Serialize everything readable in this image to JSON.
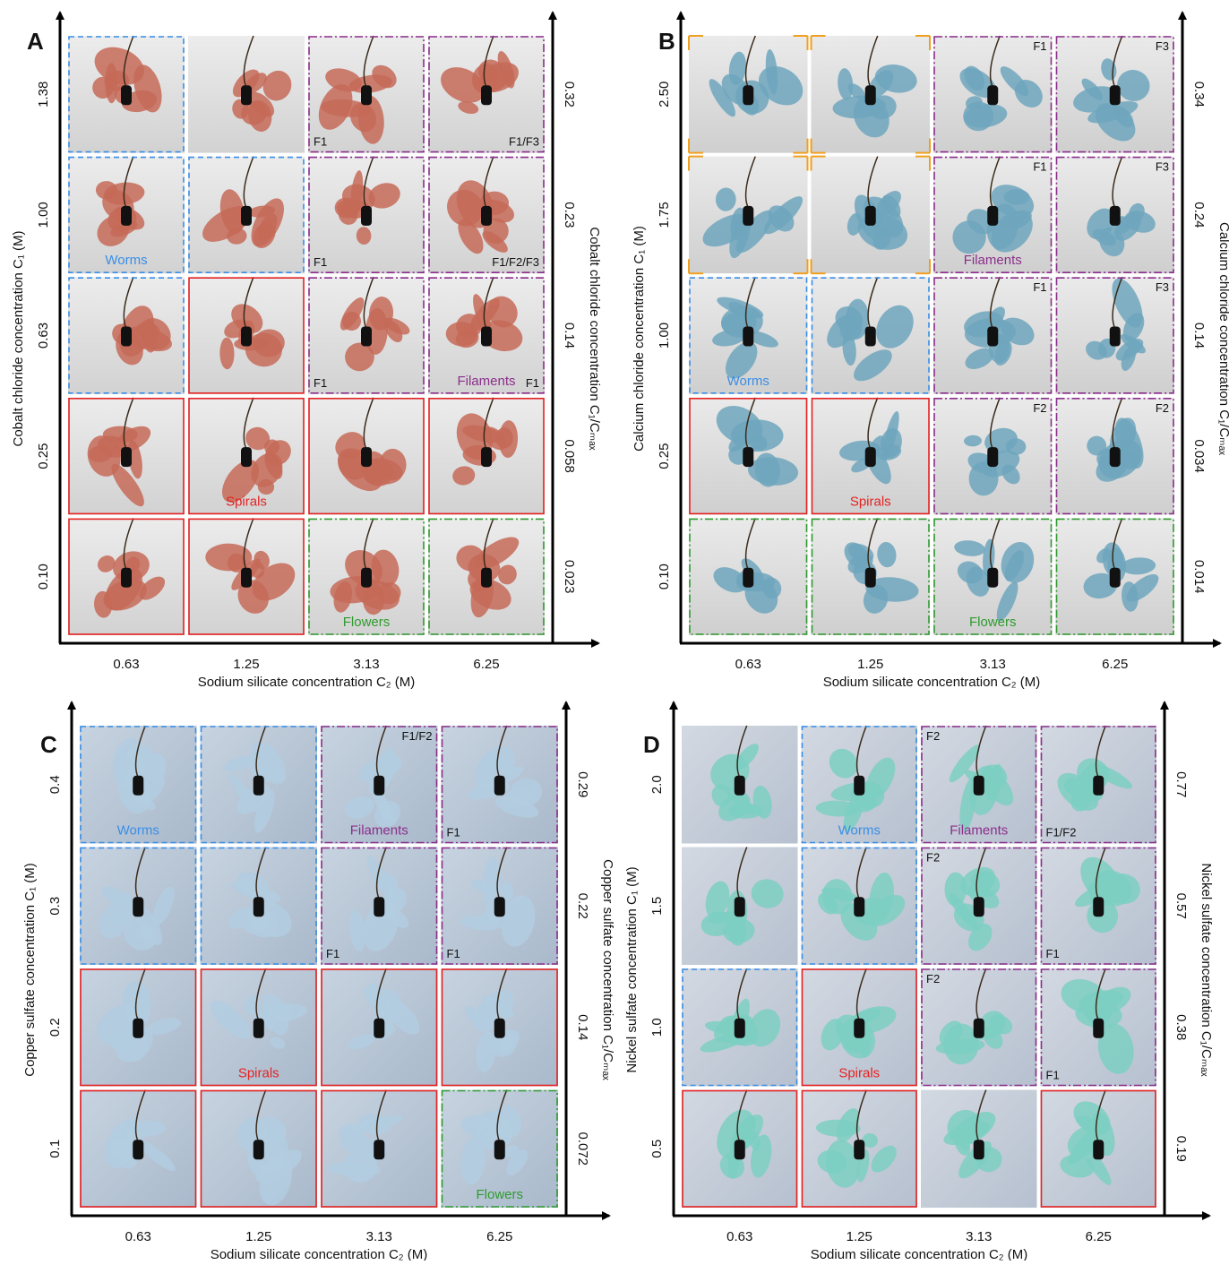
{
  "panels": [
    {
      "label": "A",
      "x_label": "Sodium silicate concentration C₂ (M)",
      "y_label": "Cobalt chloride concentration C₁ (M)",
      "y2_label": "Cobalt chloride concentration C₁/Cₘₐₓ",
      "x_ticks": [
        "0.63",
        "1.25",
        "3.13",
        "6.25"
      ],
      "y_ticks": [
        "1.38",
        "1.00",
        "0.63",
        "0.25",
        "0.10"
      ],
      "y2_ticks": [
        "0.32",
        "0.23",
        "0.14",
        "0.058",
        "0.023"
      ],
      "cells": [
        [
          {},
          {},
          {
            "tag": "F1"
          },
          {
            "tag": "F1/F3"
          }
        ],
        [
          {
            "category": "Worms"
          },
          {},
          {
            "tag": "F1"
          },
          {
            "tag": "F1/F2/F3"
          }
        ],
        [
          {},
          {},
          {
            "tag": "F1"
          },
          {
            "tag": "F1",
            "category": "Filaments"
          }
        ],
        [
          {},
          {
            "category": "Spirals"
          },
          {},
          {}
        ],
        [
          {},
          {},
          {
            "category": "Flowers"
          },
          {}
        ]
      ]
    },
    {
      "label": "B",
      "x_label": "Sodium silicate concentration C₂ (M)",
      "y_label": "Calcium chloride concentration C₁ (M)",
      "y2_label": "Calcium chloride concentration C₁/Cₘₐₓ",
      "x_ticks": [
        "0.63",
        "1.25",
        "3.13",
        "6.25"
      ],
      "y_ticks": [
        "2.50",
        "1.75",
        "1.00",
        "0.25",
        "0.10"
      ],
      "y2_ticks": [
        "0.34",
        "0.24",
        "0.14",
        "0.034",
        "0.014"
      ],
      "cells": [
        [
          {},
          {},
          {
            "tag": "F1"
          },
          {
            "tag": "F3"
          }
        ],
        [
          {},
          {},
          {
            "tag": "F1",
            "category": "Filaments"
          },
          {
            "tag": "F3"
          }
        ],
        [
          {
            "category": "Worms"
          },
          {},
          {
            "tag": "F1"
          },
          {
            "tag": "F3"
          }
        ],
        [
          {},
          {
            "category": "Spirals"
          },
          {
            "tag": "F2"
          },
          {
            "tag": "F2"
          }
        ],
        [
          {},
          {},
          {
            "category": "Flowers"
          },
          {}
        ]
      ]
    },
    {
      "label": "C",
      "x_label": "Sodium silicate concentration C₂ (M)",
      "y_label": "Copper sulfate concentration C₁ (M)",
      "y2_label": "Copper sulfate concentration C₁/Cₘₐₓ",
      "x_ticks": [
        "0.63",
        "1.25",
        "3.13",
        "6.25"
      ],
      "y_ticks": [
        "0.4",
        "0.3",
        "0.2",
        "0.1"
      ],
      "y2_ticks": [
        "0.29",
        "0.22",
        "0.14",
        "0.072"
      ],
      "cells": [
        [
          {
            "category": "Worms"
          },
          {},
          {
            "tag": "F1/F2",
            "category": "Filaments"
          },
          {
            "tag": "F1"
          }
        ],
        [
          {},
          {},
          {
            "tag": "F1"
          },
          {
            "tag": "F1"
          }
        ],
        [
          {},
          {
            "category": "Spirals"
          },
          {},
          {}
        ],
        [
          {},
          {},
          {},
          {
            "category": "Flowers"
          }
        ]
      ]
    },
    {
      "label": "D",
      "x_label": "Sodium silicate concentration C₂ (M)",
      "y_label": "Nickel sulfate concentration C₁ (M)",
      "y2_label": "Nickel sulfate concentration C₁/Cₘₐₓ",
      "x_ticks": [
        "0.63",
        "1.25",
        "3.13",
        "6.25"
      ],
      "y_ticks": [
        "2.0",
        "1.5",
        "1.0",
        "0.5"
      ],
      "y2_ticks": [
        "0.77",
        "0.57",
        "0.38",
        "0.19"
      ],
      "cells": [
        [
          {},
          {
            "category": "Worms"
          },
          {
            "tag": "F2",
            "category": "Filaments"
          },
          {
            "tag": "F1/F2"
          }
        ],
        [
          {},
          {},
          {
            "tag": "F2"
          },
          {
            "tag": "F1"
          }
        ],
        [
          {},
          {
            "category": "Spirals"
          },
          {
            "tag": "F2"
          },
          {
            "tag": "F1"
          }
        ],
        [
          {},
          {},
          {},
          {}
        ]
      ]
    }
  ]
}
